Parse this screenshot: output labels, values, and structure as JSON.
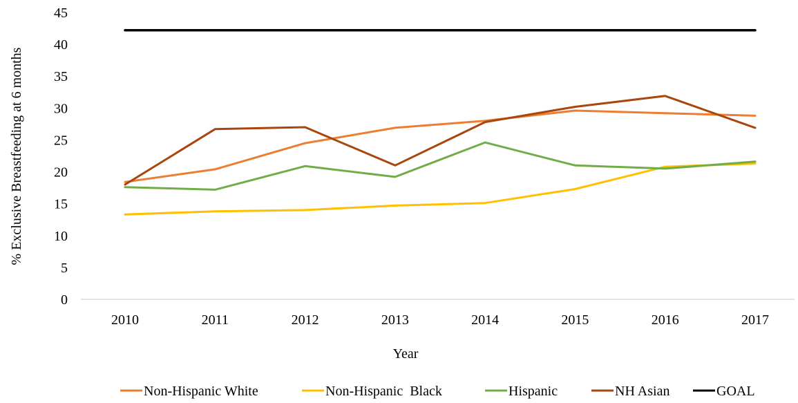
{
  "chart_data": {
    "type": "line",
    "title": "",
    "xlabel": "Year",
    "ylabel": "%  Exclusive Breastfeeding at 6 months",
    "categories": [
      "2010",
      "2011",
      "2012",
      "2013",
      "2014",
      "2015",
      "2016",
      "2017"
    ],
    "ylim": [
      0,
      45
    ],
    "yticks": [
      0,
      5,
      10,
      15,
      20,
      25,
      30,
      35,
      40,
      45
    ],
    "grid": false,
    "legend_position": "bottom",
    "series": [
      {
        "name": "Non-Hispanic White",
        "color": "#ED7D31",
        "values": [
          18.4,
          20.4,
          24.5,
          26.9,
          28.0,
          29.6,
          29.2,
          28.8
        ]
      },
      {
        "name": "Non-Hispanic  Black",
        "color": "#FFC000",
        "values": [
          13.3,
          13.8,
          14.0,
          14.7,
          15.1,
          17.3,
          20.8,
          21.3
        ]
      },
      {
        "name": "Hispanic",
        "color": "#70AD47",
        "values": [
          17.6,
          17.2,
          20.9,
          19.2,
          24.6,
          21.0,
          20.5,
          21.6
        ]
      },
      {
        "name": "NH Asian",
        "color": "#A9460E",
        "values": [
          18.0,
          26.7,
          27.0,
          21.0,
          27.8,
          30.2,
          31.9,
          26.9
        ]
      },
      {
        "name": "GOAL",
        "color": "#000000",
        "values": [
          42.2,
          42.2,
          42.2,
          42.2,
          42.2,
          42.2,
          42.2,
          42.2
        ]
      }
    ]
  }
}
